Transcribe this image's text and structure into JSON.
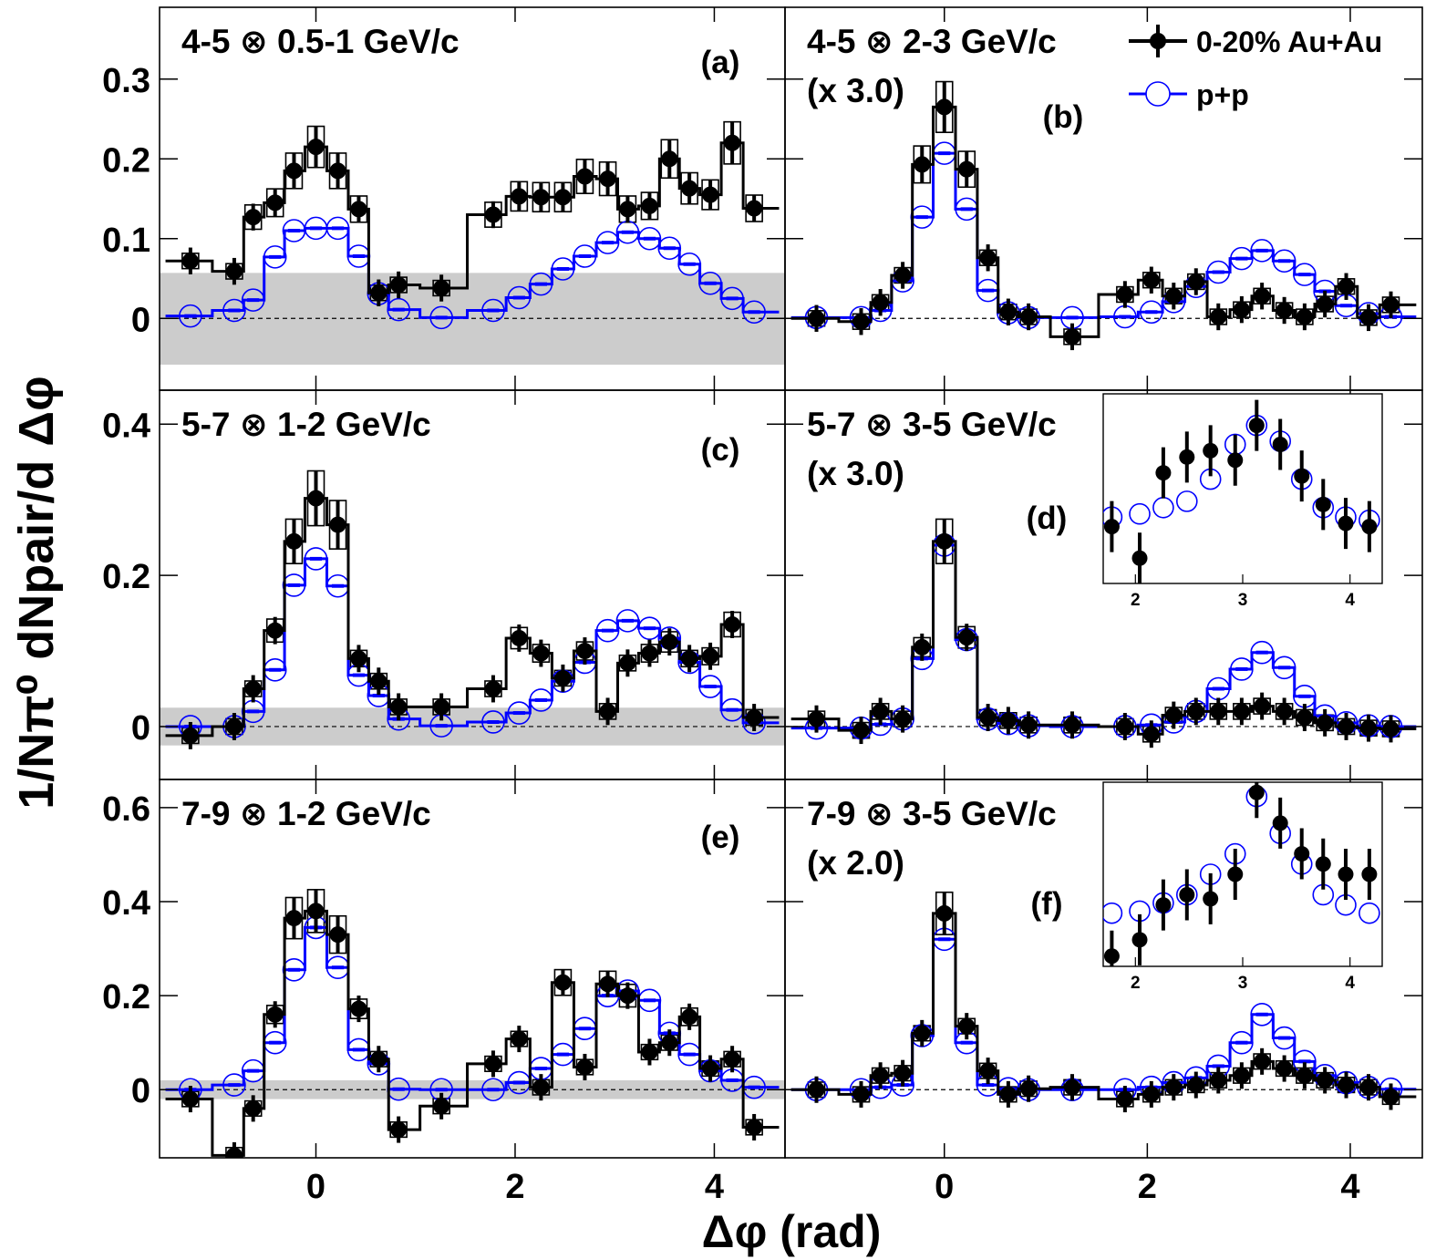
{
  "figure": {
    "ylabel": "1/Nπ⁰ dNpair/d Δφ",
    "xlabel": "Δφ (rad)",
    "colors": {
      "auau": "#000000",
      "pp": "#0000ff",
      "band": "#cccccc"
    }
  },
  "legend": [
    {
      "label": "0-20% Au+Au",
      "marker": "filled-circle",
      "color": "#000000"
    },
    {
      "label": "p+p",
      "marker": "open-circle",
      "color": "#0000ff"
    }
  ],
  "chart_data": [
    {
      "id": "a",
      "panel_label": "(a)",
      "type": "scatter",
      "title": "4-5 ⊗ 0.5-1 GeV/c",
      "scale_note": "",
      "xlim": [
        -1.57,
        4.71
      ],
      "ylim": [
        -0.09,
        0.39
      ],
      "yticks": [
        0,
        0.1,
        0.2,
        0.3
      ],
      "ytick_labels": [
        "0",
        "0.1",
        "0.2",
        "0.3"
      ],
      "xticks": [
        0,
        2,
        4
      ],
      "xtick_labels": [],
      "band": [
        -0.058,
        0.057
      ],
      "x": [
        -1.26,
        -0.82,
        -0.63,
        -0.41,
        -0.22,
        0,
        0.22,
        0.43,
        0.63,
        0.83,
        1.26,
        1.78,
        2.04,
        2.26,
        2.48,
        2.7,
        2.93,
        3.13,
        3.35,
        3.55,
        3.75,
        3.96,
        4.18,
        4.4
      ],
      "auau": [
        0.072,
        0.059,
        0.127,
        0.145,
        0.185,
        0.215,
        0.185,
        0.137,
        0.032,
        0.042,
        0.038,
        0.13,
        0.153,
        0.152,
        0.152,
        0.178,
        0.175,
        0.137,
        0.141,
        0.2,
        0.163,
        0.155,
        0.22,
        0.138
      ],
      "pp": [
        0.003,
        0.01,
        0.023,
        0.077,
        0.11,
        0.113,
        0.113,
        0.078,
        0.031,
        0.011,
        0.001,
        0.01,
        0.026,
        0.043,
        0.062,
        0.078,
        0.095,
        0.108,
        0.1,
        0.088,
        0.068,
        0.044,
        0.025,
        0.008
      ]
    },
    {
      "id": "b",
      "panel_label": "(b)",
      "type": "scatter",
      "title": "4-5 ⊗ 2-3 GeV/c",
      "scale_note": "(x 3.0)",
      "xlim": [
        -1.57,
        4.71
      ],
      "ylim": [
        -0.09,
        0.39
      ],
      "yticks": [
        0,
        0.1,
        0.2,
        0.3
      ],
      "ytick_labels": [],
      "xticks": [
        0,
        2,
        4
      ],
      "xtick_labels": [],
      "x": [
        -1.26,
        -0.82,
        -0.63,
        -0.41,
        -0.22,
        0,
        0.22,
        0.43,
        0.63,
        0.83,
        1.26,
        1.78,
        2.04,
        2.26,
        2.48,
        2.7,
        2.93,
        3.13,
        3.35,
        3.55,
        3.75,
        3.96,
        4.18,
        4.4
      ],
      "auau": [
        0,
        -0.004,
        0.02,
        0.054,
        0.193,
        0.265,
        0.187,
        0.076,
        0.008,
        0.002,
        -0.023,
        0.03,
        0.048,
        0.028,
        0.046,
        0.002,
        0.011,
        0.028,
        0.01,
        0.002,
        0.018,
        0.04,
        0.001,
        0.017
      ],
      "pp": [
        0.001,
        0.001,
        0.01,
        0.047,
        0.127,
        0.207,
        0.137,
        0.035,
        0.007,
        0.001,
        0.001,
        0.002,
        0.008,
        0.021,
        0.04,
        0.058,
        0.075,
        0.085,
        0.072,
        0.055,
        0.034,
        0.016,
        0.006,
        0.002
      ]
    },
    {
      "id": "c",
      "panel_label": "(c)",
      "type": "scatter",
      "title": "5-7 ⊗ 1-2 GeV/c",
      "scale_note": "",
      "xlim": [
        -1.57,
        4.71
      ],
      "ylim": [
        -0.07,
        0.445
      ],
      "yticks": [
        0,
        0.2,
        0.4
      ],
      "ytick_labels": [
        "0",
        "0.2",
        "0.4"
      ],
      "xticks": [
        0,
        2,
        4
      ],
      "xtick_labels": [],
      "band": [
        -0.025,
        0.025
      ],
      "x": [
        -1.26,
        -0.82,
        -0.63,
        -0.41,
        -0.22,
        0,
        0.22,
        0.43,
        0.63,
        0.83,
        1.26,
        1.78,
        2.04,
        2.26,
        2.48,
        2.7,
        2.93,
        3.13,
        3.35,
        3.55,
        3.75,
        3.96,
        4.18,
        4.4
      ],
      "auau": [
        -0.012,
        0,
        0.05,
        0.127,
        0.245,
        0.302,
        0.267,
        0.09,
        0.06,
        0.026,
        0.026,
        0.05,
        0.117,
        0.097,
        0.064,
        0.1,
        0.02,
        0.084,
        0.097,
        0.112,
        0.09,
        0.093,
        0.135,
        0.012
      ],
      "pp": [
        0,
        0,
        0.02,
        0.075,
        0.187,
        0.222,
        0.186,
        0.068,
        0.041,
        0.01,
        0.001,
        0.006,
        0.018,
        0.035,
        0.06,
        0.085,
        0.127,
        0.14,
        0.13,
        0.117,
        0.085,
        0.053,
        0.022,
        0.005
      ]
    },
    {
      "id": "d",
      "panel_label": "(d)",
      "type": "scatter",
      "title": "5-7 ⊗ 3-5 GeV/c",
      "scale_note": "(x 3.0)",
      "xlim": [
        -1.57,
        4.71
      ],
      "ylim": [
        -0.07,
        0.445
      ],
      "yticks": [
        0,
        0.2,
        0.4
      ],
      "ytick_labels": [],
      "xticks": [
        0,
        2,
        4
      ],
      "xtick_labels": [],
      "x": [
        -1.26,
        -0.82,
        -0.63,
        -0.41,
        -0.22,
        0,
        0.22,
        0.43,
        0.63,
        0.83,
        1.26,
        1.78,
        2.04,
        2.26,
        2.48,
        2.7,
        2.93,
        3.13,
        3.35,
        3.55,
        3.75,
        3.96,
        4.18,
        4.4
      ],
      "auau": [
        0.01,
        -0.005,
        0.02,
        0.01,
        0.105,
        0.245,
        0.118,
        0.012,
        0.008,
        0.002,
        0.002,
        0,
        -0.01,
        0.015,
        0.02,
        0.02,
        0.02,
        0.027,
        0.02,
        0.012,
        0.005,
        0,
        -0.002,
        -0.003
      ],
      "pp": [
        -0.002,
        -0.002,
        0.003,
        0.01,
        0.09,
        0.24,
        0.115,
        0.01,
        0.004,
        0.001,
        0,
        0,
        0.002,
        0.006,
        0.02,
        0.05,
        0.076,
        0.098,
        0.078,
        0.04,
        0.014,
        0.005,
        0.001,
        0
      ],
      "inset": {
        "xlim": [
          1.7,
          4.3
        ],
        "xticks": [
          2,
          3,
          4
        ],
        "xtick_labels": [
          "2",
          "3",
          "4"
        ],
        "ylim": [
          -0.02,
          0.04
        ],
        "x": [
          1.78,
          2.04,
          2.26,
          2.48,
          2.7,
          2.93,
          3.13,
          3.35,
          3.55,
          3.75,
          3.96,
          4.18
        ],
        "auau": [
          -0.002,
          -0.012,
          0.015,
          0.02,
          0.022,
          0.019,
          0.03,
          0.024,
          0.014,
          0.005,
          -0.001,
          -0.002
        ],
        "pp": [
          0.001,
          0.002,
          0.004,
          0.006,
          0.013,
          0.024,
          0.03,
          0.025,
          0.013,
          0.004,
          0.001,
          0
        ]
      }
    },
    {
      "id": "e",
      "panel_label": "(e)",
      "type": "scatter",
      "title": "7-9 ⊗ 1-2 GeV/c",
      "scale_note": "",
      "xlim": [
        -1.57,
        4.71
      ],
      "ylim": [
        -0.145,
        0.66
      ],
      "yticks": [
        0,
        0.2,
        0.4,
        0.6
      ],
      "ytick_labels": [
        "0",
        "0.2",
        "0.4",
        "0.6"
      ],
      "xticks": [
        0,
        2,
        4
      ],
      "xtick_labels": [
        "0",
        "2",
        "4"
      ],
      "band": [
        -0.02,
        0.02
      ],
      "x": [
        -1.26,
        -0.82,
        -0.63,
        -0.41,
        -0.22,
        0,
        0.22,
        0.43,
        0.63,
        0.83,
        1.26,
        1.78,
        2.04,
        2.26,
        2.48,
        2.7,
        2.93,
        3.13,
        3.35,
        3.55,
        3.75,
        3.96,
        4.18,
        4.4
      ],
      "auau": [
        -0.02,
        -0.14,
        -0.04,
        0.16,
        0.365,
        0.38,
        0.33,
        0.172,
        0.065,
        -0.085,
        -0.035,
        0.055,
        0.108,
        0.005,
        0.228,
        0.048,
        0.225,
        0.2,
        0.08,
        0.1,
        0.155,
        0.045,
        0.065,
        -0.08
      ],
      "pp": [
        0,
        0.01,
        0.04,
        0.1,
        0.255,
        0.345,
        0.26,
        0.085,
        0.055,
        0.001,
        0,
        0,
        0.015,
        0.045,
        0.075,
        0.13,
        0.2,
        0.21,
        0.19,
        0.12,
        0.075,
        0.04,
        0.02,
        0.005
      ]
    },
    {
      "id": "f",
      "panel_label": "(f)",
      "type": "scatter",
      "title": "7-9 ⊗ 3-5 GeV/c",
      "scale_note": "(x 2.0)",
      "xlim": [
        -1.57,
        4.71
      ],
      "ylim": [
        -0.145,
        0.66
      ],
      "yticks": [
        0,
        0.2,
        0.4,
        0.6
      ],
      "ytick_labels": [],
      "xticks": [
        0,
        2,
        4
      ],
      "xtick_labels": [
        "0",
        "2",
        "4"
      ],
      "x": [
        -1.26,
        -0.82,
        -0.63,
        -0.41,
        -0.22,
        0,
        0.22,
        0.43,
        0.63,
        0.83,
        1.26,
        1.78,
        2.04,
        2.26,
        2.48,
        2.7,
        2.93,
        3.13,
        3.35,
        3.55,
        3.75,
        3.96,
        4.18,
        4.4
      ],
      "auau": [
        0,
        -0.01,
        0.03,
        0.035,
        0.12,
        0.375,
        0.135,
        0.04,
        -0.01,
        0.002,
        0.005,
        -0.02,
        -0.01,
        0.005,
        0.01,
        0.02,
        0.03,
        0.06,
        0.045,
        0.03,
        0.02,
        0.01,
        0.005,
        -0.015
      ],
      "pp": [
        0,
        0,
        0.005,
        0.01,
        0.115,
        0.32,
        0.1,
        0.01,
        0.002,
        0,
        0,
        0,
        0.005,
        0.015,
        0.025,
        0.05,
        0.1,
        0.16,
        0.11,
        0.06,
        0.03,
        0.015,
        0.005,
        0.001
      ],
      "inset": {
        "xlim": [
          1.7,
          4.3
        ],
        "xticks": [
          2,
          3,
          4
        ],
        "xtick_labels": [
          "2",
          "3",
          "4"
        ],
        "ylim": [
          -0.025,
          0.065
        ],
        "x": [
          1.78,
          2.04,
          2.26,
          2.48,
          2.7,
          2.93,
          3.13,
          3.35,
          3.55,
          3.75,
          3.96,
          4.18
        ],
        "auau": [
          -0.02,
          -0.012,
          0.005,
          0.01,
          0.008,
          0.02,
          0.06,
          0.045,
          0.03,
          0.025,
          0.02,
          0.02
        ],
        "pp": [
          0.001,
          0.002,
          0.006,
          0.01,
          0.02,
          0.03,
          0.058,
          0.04,
          0.025,
          0.01,
          0.005,
          0.001
        ]
      }
    }
  ]
}
